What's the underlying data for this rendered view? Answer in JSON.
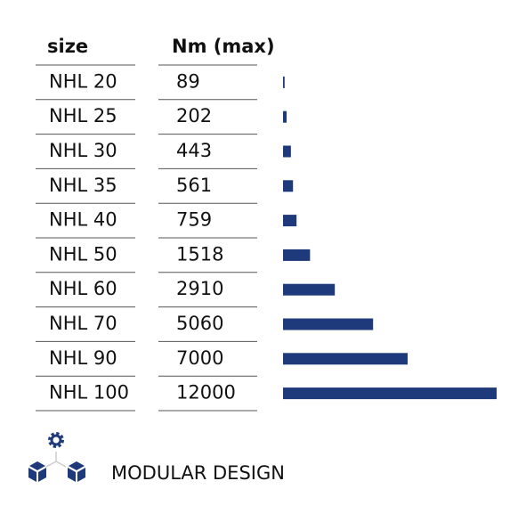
{
  "table": {
    "headers": [
      "size",
      "Nm (max)"
    ],
    "rows": [
      [
        "NHL 20",
        89
      ],
      [
        "NHL 25",
        202
      ],
      [
        "NHL 30",
        443
      ],
      [
        "NHL 35",
        561
      ],
      [
        "NHL 40",
        759
      ],
      [
        "NHL 50",
        1518
      ],
      [
        "NHL 60",
        2910
      ],
      [
        "NHL 70",
        5060
      ],
      [
        "NHL 90",
        7000
      ],
      [
        "NHL 100",
        12000
      ]
    ]
  },
  "footer": {
    "label": "MODULAR DESIGN"
  }
}
